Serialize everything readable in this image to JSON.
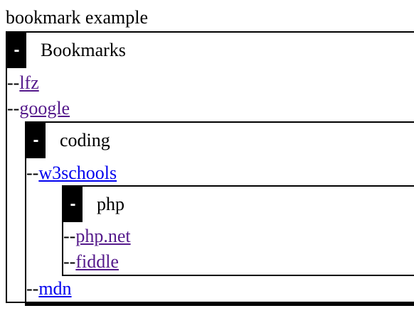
{
  "page": {
    "title": "bookmark example"
  },
  "prefix": "--",
  "colors": {
    "visited_link": "#551a8b",
    "unvisited_link": "#0000ee",
    "toggle_background": "#000000",
    "toggle_text": "#ffffff"
  },
  "bookmarks": {
    "toggle": "-",
    "name": "Bookmarks",
    "items": [
      {
        "label": "lfz",
        "visited": true
      },
      {
        "label": "google",
        "visited": true
      }
    ],
    "coding": {
      "toggle": "-",
      "name": "coding",
      "items": [
        {
          "label": "w3schools",
          "visited": false
        }
      ],
      "php": {
        "toggle": "-",
        "name": "php",
        "items": [
          {
            "label": "php.net",
            "visited": true
          },
          {
            "label": "fiddle",
            "visited": true
          }
        ]
      },
      "after_items": [
        {
          "label": "mdn",
          "visited": false
        }
      ]
    }
  }
}
